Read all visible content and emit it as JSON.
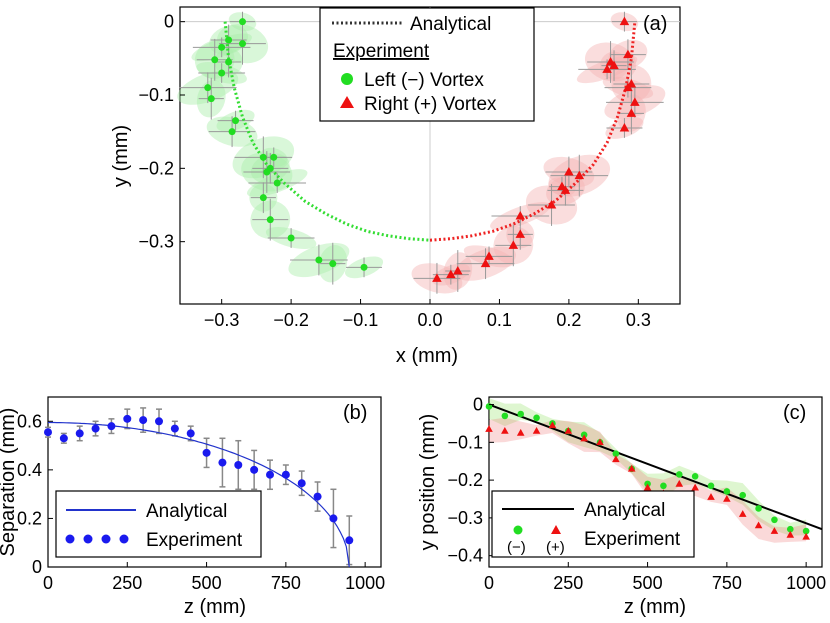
{
  "chart_data": [
    {
      "type": "scatter",
      "panel_label": "(a)",
      "xlabel": "x (mm)",
      "ylabel": "y (mm)",
      "xlim": [
        -0.36,
        0.36
      ],
      "ylim": [
        -0.385,
        0.02
      ],
      "xticks": [
        -0.3,
        -0.2,
        -0.1,
        0,
        0.1,
        0.2,
        0.3
      ],
      "xtick_labels": [
        "−0.3",
        "−0.2",
        "−0.1",
        "0.0",
        "0.1",
        "0.2",
        "0.3"
      ],
      "yticks": [
        0,
        -0.1,
        -0.2,
        -0.3
      ],
      "ytick_labels": [
        "0",
        "−0.1",
        "−0.2",
        "−0.3"
      ],
      "legend": {
        "analytical": "Analytical",
        "experiment": "Experiment",
        "left": "Left (−) Vortex",
        "right": "Right (+) Vortex"
      },
      "series": [
        {
          "name": "Analytical left",
          "color": "#33dd33",
          "x": [
            -0.295,
            -0.29,
            -0.282,
            -0.27,
            -0.255,
            -0.235,
            -0.21,
            -0.18,
            -0.15,
            -0.12,
            -0.09,
            -0.06,
            -0.03,
            0
          ],
          "y": [
            0,
            -0.05,
            -0.09,
            -0.13,
            -0.165,
            -0.195,
            -0.22,
            -0.245,
            -0.262,
            -0.276,
            -0.286,
            -0.292,
            -0.296,
            -0.298
          ]
        },
        {
          "name": "Analytical right",
          "color": "#ee2222",
          "x": [
            0,
            0.03,
            0.06,
            0.09,
            0.12,
            0.15,
            0.18,
            0.21,
            0.235,
            0.255,
            0.27,
            0.282,
            0.29,
            0.295
          ],
          "y": [
            -0.298,
            -0.296,
            -0.292,
            -0.286,
            -0.276,
            -0.262,
            -0.245,
            -0.22,
            -0.195,
            -0.165,
            -0.13,
            -0.09,
            -0.05,
            0
          ]
        },
        {
          "name": "Left (−) Vortex",
          "color": "#22dd22",
          "x": [
            -0.27,
            -0.29,
            -0.27,
            -0.3,
            -0.29,
            -0.31,
            -0.3,
            -0.32,
            -0.315,
            -0.28,
            -0.285,
            -0.24,
            -0.225,
            -0.23,
            -0.235,
            -0.22,
            -0.24,
            -0.23,
            -0.2,
            -0.16,
            -0.14,
            -0.095
          ],
          "y": [
            0,
            -0.025,
            -0.03,
            -0.035,
            -0.055,
            -0.052,
            -0.07,
            -0.09,
            -0.105,
            -0.135,
            -0.15,
            -0.185,
            -0.185,
            -0.2,
            -0.205,
            -0.22,
            -0.24,
            -0.27,
            -0.295,
            -0.325,
            -0.33,
            -0.335
          ]
        },
        {
          "name": "Right (+) Vortex",
          "color": "#ee1111",
          "x": [
            0.28,
            0.285,
            0.26,
            0.255,
            0.265,
            0.29,
            0.285,
            0.295,
            0.29,
            0.28,
            0.2,
            0.215,
            0.19,
            0.195,
            0.175,
            0.13,
            0.13,
            0.12,
            0.085,
            0.08,
            0.04,
            0.03,
            0.01
          ],
          "y": [
            0,
            -0.045,
            -0.055,
            -0.065,
            -0.06,
            -0.085,
            -0.09,
            -0.11,
            -0.125,
            -0.145,
            -0.205,
            -0.21,
            -0.225,
            -0.23,
            -0.25,
            -0.265,
            -0.29,
            -0.305,
            -0.32,
            -0.33,
            -0.34,
            -0.345,
            -0.35
          ]
        }
      ]
    },
    {
      "type": "scatter",
      "panel_label": "(b)",
      "xlabel": "z (mm)",
      "ylabel": "Separation (mm)",
      "xlim": [
        0,
        1050
      ],
      "ylim": [
        0,
        0.7
      ],
      "xticks": [
        0,
        250,
        500,
        750,
        1000
      ],
      "xtick_labels": [
        "0",
        "250",
        "500",
        "750",
        "1000"
      ],
      "yticks": [
        0,
        0.2,
        0.4,
        0.6
      ],
      "ytick_labels": [
        "0",
        "0.2",
        "0.4",
        "0.6"
      ],
      "legend": {
        "analytical": "Analytical",
        "experiment": "Experiment"
      },
      "analytical": {
        "color": "#2233cc",
        "z0": 950,
        "s0": 0.595
      },
      "series": [
        {
          "name": "Experiment",
          "color": "#1a1aee",
          "x": [
            0,
            50,
            100,
            150,
            200,
            250,
            300,
            350,
            400,
            450,
            500,
            550,
            600,
            650,
            700,
            750,
            800,
            850,
            900,
            950
          ],
          "y": [
            0.555,
            0.53,
            0.55,
            0.57,
            0.58,
            0.61,
            0.605,
            0.6,
            0.57,
            0.55,
            0.47,
            0.43,
            0.42,
            0.4,
            0.38,
            0.38,
            0.345,
            0.29,
            0.2,
            0.11
          ],
          "err": [
            0.02,
            0.02,
            0.03,
            0.03,
            0.03,
            0.04,
            0.05,
            0.05,
            0.03,
            0.03,
            0.06,
            0.1,
            0.1,
            0.08,
            0.06,
            0.04,
            0.05,
            0.06,
            0.12,
            0.1
          ]
        }
      ]
    },
    {
      "type": "scatter",
      "panel_label": "(c)",
      "xlabel": "z (mm)",
      "ylabel": "y position (mm)",
      "xlim": [
        0,
        1050
      ],
      "ylim": [
        -0.43,
        0.02
      ],
      "xticks": [
        0,
        250,
        500,
        750,
        1000
      ],
      "xtick_labels": [
        "0",
        "250",
        "500",
        "750",
        "1000"
      ],
      "yticks": [
        0,
        -0.1,
        -0.2,
        -0.3,
        -0.4
      ],
      "ytick_labels": [
        "0",
        "−0.1",
        "−0.2",
        "−0.3",
        "−0.4"
      ],
      "legend": {
        "analytical": "Analytical",
        "experiment": "Experiment",
        "minus": "(−)",
        "plus": "(+)"
      },
      "analytical": {
        "color": "#000000",
        "x": [
          0,
          1050
        ],
        "y": [
          0,
          -0.33
        ]
      },
      "series": [
        {
          "name": "(−)",
          "color": "#22dd22",
          "x": [
            0,
            50,
            100,
            150,
            200,
            250,
            300,
            350,
            400,
            450,
            500,
            550,
            600,
            650,
            700,
            750,
            800,
            850,
            900,
            950,
            1000
          ],
          "y": [
            -0.005,
            -0.03,
            -0.025,
            -0.035,
            -0.05,
            -0.07,
            -0.08,
            -0.1,
            -0.13,
            -0.17,
            -0.21,
            -0.215,
            -0.185,
            -0.19,
            -0.215,
            -0.23,
            -0.24,
            -0.275,
            -0.305,
            -0.33,
            -0.335
          ]
        },
        {
          "name": "(+)",
          "color": "#ee1111",
          "x": [
            0,
            50,
            100,
            150,
            200,
            250,
            300,
            350,
            400,
            450,
            500,
            550,
            600,
            650,
            700,
            750,
            800,
            850,
            900,
            950,
            1000
          ],
          "y": [
            -0.065,
            -0.07,
            -0.075,
            -0.07,
            -0.055,
            -0.07,
            -0.09,
            -0.1,
            -0.145,
            -0.17,
            -0.22,
            -0.235,
            -0.21,
            -0.22,
            -0.245,
            -0.25,
            -0.29,
            -0.32,
            -0.335,
            -0.345,
            -0.35
          ]
        }
      ]
    }
  ]
}
